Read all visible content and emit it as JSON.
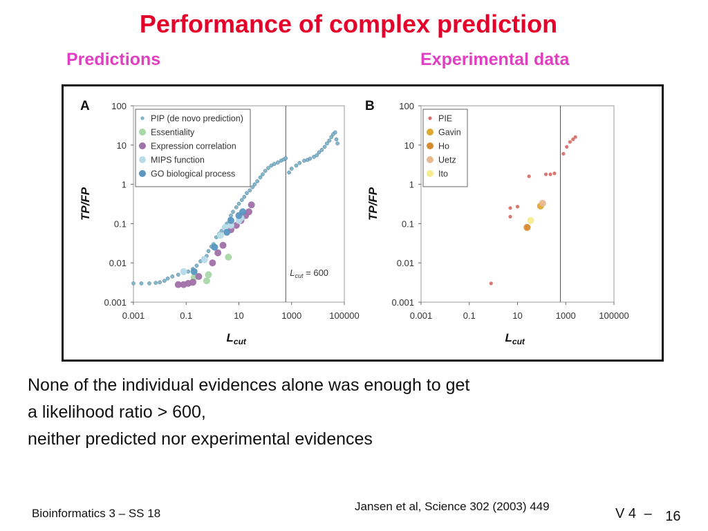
{
  "slide": {
    "title": "Performance of complex prediction",
    "subtitle_left": "Predictions",
    "subtitle_right": "Experimental data",
    "body_lines": [
      "None of the individual evidences alone was enough to get",
      "a likelihood ratio > 600,",
      "neither predicted nor experimental evidences"
    ],
    "footer_left": "Bioinformatics 3 – SS 18",
    "footer_mid": "Jansen et al, Science 302 (2003) 449",
    "footer_right_a": "V 4",
    "footer_right_b": "–",
    "footer_right_c": "16"
  },
  "colors": {
    "title": "#e4002b",
    "subtitle": "#e040c0",
    "pip": "#7fb3c8",
    "essentiality": "#a8d8a8",
    "expression": "#a070a8",
    "mips": "#b8dcea",
    "go": "#5a96c0",
    "pie": "#d9706a",
    "gavin": "#e0a830",
    "ho": "#d88a30",
    "uetz": "#e8b890",
    "ito": "#f5ec90"
  },
  "chart_data": [
    {
      "type": "scatter",
      "panel_label": "A",
      "xlabel_main": "L",
      "xlabel_sub": "cut",
      "ylabel": "TP/FP",
      "log_x": true,
      "log_y": true,
      "xlim": [
        0.001,
        100000
      ],
      "ylim": [
        0.001,
        100
      ],
      "xticks": [
        "0.001",
        "0.1",
        "10",
        "1000",
        "100000"
      ],
      "yticks": [
        "100",
        "10",
        "1",
        "0.1",
        "0.01",
        "0.001"
      ],
      "vline": {
        "x": 600,
        "label_main": "L",
        "label_sub": "cut",
        "label_suffix": " = 600"
      },
      "legend": "top-left",
      "series": [
        {
          "name": "PIP (de novo prediction)",
          "color_key": "pip",
          "size": "small",
          "points": [
            [
              0.001,
              0.003
            ],
            [
              0.002,
              0.003
            ],
            [
              0.004,
              0.003
            ],
            [
              0.007,
              0.0031
            ],
            [
              0.01,
              0.0032
            ],
            [
              0.015,
              0.0035
            ],
            [
              0.02,
              0.004
            ],
            [
              0.03,
              0.0045
            ],
            [
              0.05,
              0.005
            ],
            [
              0.08,
              0.0055
            ],
            [
              0.12,
              0.006
            ],
            [
              0.18,
              0.007
            ],
            [
              0.25,
              0.0085
            ],
            [
              0.35,
              0.011
            ],
            [
              0.45,
              0.013
            ],
            [
              0.6,
              0.015
            ],
            [
              0.7,
              0.02
            ],
            [
              0.9,
              0.026
            ],
            [
              1.1,
              0.03
            ],
            [
              1.4,
              0.045
            ],
            [
              1.8,
              0.055
            ],
            [
              2.2,
              0.065
            ],
            [
              2.8,
              0.08
            ],
            [
              3.5,
              0.1
            ],
            [
              4.5,
              0.13
            ],
            [
              5,
              0.16
            ],
            [
              6,
              0.2
            ],
            [
              8,
              0.26
            ],
            [
              10,
              0.32
            ],
            [
              13,
              0.4
            ],
            [
              16,
              0.48
            ],
            [
              20,
              0.6
            ],
            [
              26,
              0.7
            ],
            [
              33,
              0.85
            ],
            [
              40,
              1.0
            ],
            [
              50,
              1.2
            ],
            [
              65,
              1.5
            ],
            [
              80,
              1.8
            ],
            [
              100,
              2.2
            ],
            [
              130,
              2.6
            ],
            [
              170,
              3.0
            ],
            [
              220,
              3.3
            ],
            [
              300,
              3.6
            ],
            [
              400,
              4.0
            ],
            [
              500,
              4.3
            ],
            [
              600,
              4.6
            ],
            [
              800,
              2.0
            ],
            [
              1000,
              2.5
            ],
            [
              1500,
              3.0
            ],
            [
              2000,
              3.5
            ],
            [
              3000,
              4.0
            ],
            [
              4000,
              4.2
            ],
            [
              5000,
              4.5
            ],
            [
              7000,
              5.0
            ],
            [
              9000,
              5.5
            ],
            [
              11000,
              6.5
            ],
            [
              14000,
              7.5
            ],
            [
              18000,
              9.0
            ],
            [
              22000,
              11
            ],
            [
              27000,
              13
            ],
            [
              32000,
              16
            ],
            [
              38000,
              19
            ],
            [
              45000,
              21
            ],
            [
              50000,
              14
            ],
            [
              55000,
              11
            ]
          ]
        },
        {
          "name": "Essentiality",
          "color_key": "essentiality",
          "size": "large",
          "points": [
            [
              0.6,
              0.0035
            ],
            [
              0.7,
              0.005
            ],
            [
              4,
              0.014
            ],
            [
              0.2,
              0.0042
            ]
          ]
        },
        {
          "name": "Expression correlation",
          "color_key": "expression",
          "size": "large",
          "points": [
            [
              0.05,
              0.0028
            ],
            [
              0.08,
              0.0028
            ],
            [
              0.12,
              0.003
            ],
            [
              0.18,
              0.0032
            ],
            [
              0.3,
              0.0045
            ],
            [
              1,
              0.01
            ],
            [
              1.6,
              0.018
            ],
            [
              2.5,
              0.028
            ],
            [
              5,
              0.07
            ],
            [
              8,
              0.09
            ],
            [
              12,
              0.12
            ],
            [
              18,
              0.16
            ],
            [
              24,
              0.2
            ],
            [
              30,
              0.3
            ]
          ]
        },
        {
          "name": "MIPS function",
          "color_key": "mips",
          "size": "large",
          "points": [
            [
              0.08,
              0.006
            ],
            [
              0.5,
              0.012
            ],
            [
              2,
              0.05
            ],
            [
              3,
              0.08
            ],
            [
              5,
              0.09
            ],
            [
              10,
              0.12
            ],
            [
              12,
              0.14
            ]
          ]
        },
        {
          "name": "GO biological process",
          "color_key": "go",
          "size": "large",
          "points": [
            [
              0.2,
              0.006
            ],
            [
              1.2,
              0.025
            ],
            [
              3.5,
              0.06
            ],
            [
              5,
              0.12
            ],
            [
              10,
              0.16
            ],
            [
              14,
              0.2
            ]
          ]
        }
      ]
    },
    {
      "type": "scatter",
      "panel_label": "B",
      "xlabel_main": "L",
      "xlabel_sub": "cut",
      "ylabel": "TP/FP",
      "log_x": true,
      "log_y": true,
      "xlim": [
        0.001,
        100000
      ],
      "ylim": [
        0.001,
        100
      ],
      "xticks": [
        "0.001",
        "0.1",
        "10",
        "1000",
        "100000"
      ],
      "yticks": [
        "100",
        "10",
        "1",
        "0.1",
        "0.01",
        "0.001"
      ],
      "vline": {
        "x": 600
      },
      "legend": "top-left",
      "series": [
        {
          "name": "PIE",
          "color_key": "pie",
          "size": "small",
          "points": [
            [
              0.8,
              0.003
            ],
            [
              5,
              0.15
            ],
            [
              5,
              0.25
            ],
            [
              10,
              0.27
            ],
            [
              30,
              1.6
            ],
            [
              150,
              1.8
            ],
            [
              230,
              1.8
            ],
            [
              340,
              1.9
            ],
            [
              800,
              6
            ],
            [
              1100,
              9
            ],
            [
              1500,
              12
            ],
            [
              2000,
              14
            ],
            [
              2500,
              16
            ]
          ]
        },
        {
          "name": "Gavin",
          "color_key": "gavin",
          "size": "large",
          "points": [
            [
              90,
              0.28
            ]
          ]
        },
        {
          "name": "Ho",
          "color_key": "ho",
          "size": "large",
          "points": [
            [
              25,
              0.08
            ]
          ]
        },
        {
          "name": "Uetz",
          "color_key": "uetz",
          "size": "large",
          "points": [
            [
              110,
              0.33
            ]
          ]
        },
        {
          "name": "Ito",
          "color_key": "ito",
          "size": "large",
          "points": [
            [
              35,
              0.12
            ]
          ]
        }
      ]
    }
  ]
}
